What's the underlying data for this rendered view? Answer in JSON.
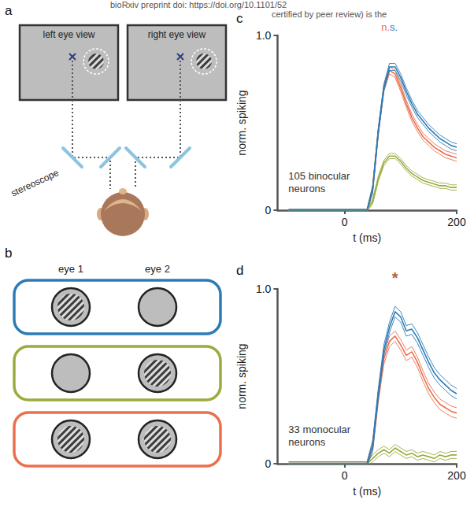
{
  "header": [
    "bioRxiv preprint doi: https://doi.org/10.1101/52",
    "certified by peer review) is the"
  ],
  "panel_letters": [
    "a",
    "b",
    "c",
    "d"
  ],
  "panel_a": {
    "left_view": "left eye view",
    "right_view": "right eye view",
    "device": "stereoscope"
  },
  "panel_b": {
    "columns": [
      "eye 1",
      "eye 2"
    ],
    "rows": [
      {
        "color": "#2b7bb6",
        "grating": [
          true,
          false
        ]
      },
      {
        "color": "#9bab3c",
        "grating": [
          false,
          true
        ]
      },
      {
        "color": "#ec6f4d",
        "grating": [
          true,
          true
        ]
      }
    ]
  },
  "chart_data": [
    {
      "type": "line",
      "x_label": "t (ms)",
      "y_label": "norm. spiking",
      "xlim": [
        -120,
        200
      ],
      "xticks": [
        0,
        200
      ],
      "ylim": [
        0,
        1
      ],
      "yticks": [
        0,
        {
          "value": 1,
          "label": "1.0"
        }
      ],
      "grid": false,
      "annotations": [
        {
          "text": [
            "105 binocular neurons"
          ],
          "colors": [
            "#333333"
          ]
        },
        {
          "text": [
            "n.",
            "s."
          ],
          "colors": [
            "#ec6f4d",
            "#2b7bb6"
          ]
        }
      ],
      "x": [
        -100,
        -90,
        -80,
        -70,
        -60,
        -50,
        -40,
        -30,
        -20,
        -10,
        0,
        10,
        20,
        30,
        40,
        50,
        60,
        70,
        80,
        90,
        100,
        110,
        120,
        130,
        140,
        150,
        160,
        170,
        180,
        190,
        200
      ],
      "series": [
        {
          "color": "#2b7bb6",
          "values": [
            0,
            0,
            0,
            0,
            0,
            0,
            0,
            0,
            0,
            0,
            0,
            0,
            0,
            0,
            0,
            0.12,
            0.45,
            0.7,
            0.82,
            0.82,
            0.76,
            0.68,
            0.61,
            0.55,
            0.51,
            0.47,
            0.44,
            0.41,
            0.39,
            0.37,
            0.36
          ],
          "sem": [
            0.005,
            0.005,
            0.005,
            0.005,
            0.005,
            0.005,
            0.005,
            0.005,
            0.005,
            0.005,
            0.005,
            0.005,
            0.005,
            0.005,
            0.005,
            0.02,
            0.02,
            0.02,
            0.02,
            0.02,
            0.02,
            0.02,
            0.02,
            0.02,
            0.02,
            0.02,
            0.02,
            0.02,
            0.02,
            0.02,
            0.02
          ]
        },
        {
          "color": "#9bab3c",
          "values": [
            0,
            0,
            0,
            0,
            0,
            0,
            0,
            0,
            0,
            0,
            0,
            0,
            0,
            0,
            0,
            0.05,
            0.18,
            0.27,
            0.31,
            0.31,
            0.28,
            0.24,
            0.21,
            0.19,
            0.17,
            0.16,
            0.15,
            0.14,
            0.14,
            0.13,
            0.13
          ],
          "sem": [
            0.005,
            0.005,
            0.005,
            0.005,
            0.005,
            0.005,
            0.005,
            0.005,
            0.005,
            0.005,
            0.005,
            0.005,
            0.005,
            0.005,
            0.005,
            0.015,
            0.015,
            0.015,
            0.015,
            0.015,
            0.015,
            0.015,
            0.015,
            0.015,
            0.015,
            0.015,
            0.015,
            0.015,
            0.015,
            0.015,
            0.015
          ]
        },
        {
          "color": "#ec6f4d",
          "values": [
            0,
            0,
            0,
            0,
            0,
            0,
            0,
            0,
            0,
            0,
            0,
            0,
            0,
            0,
            0,
            0.12,
            0.45,
            0.7,
            0.8,
            0.78,
            0.7,
            0.61,
            0.53,
            0.47,
            0.42,
            0.39,
            0.36,
            0.34,
            0.32,
            0.31,
            0.3
          ],
          "sem": [
            0.005,
            0.005,
            0.005,
            0.005,
            0.005,
            0.005,
            0.005,
            0.005,
            0.005,
            0.005,
            0.005,
            0.005,
            0.005,
            0.005,
            0.005,
            0.02,
            0.02,
            0.02,
            0.02,
            0.02,
            0.02,
            0.02,
            0.02,
            0.02,
            0.02,
            0.02,
            0.02,
            0.02,
            0.02,
            0.02,
            0.02
          ]
        }
      ]
    },
    {
      "type": "line",
      "x_label": "t (ms)",
      "y_label": "norm. spiking",
      "xlim": [
        -120,
        200
      ],
      "xticks": [
        0,
        200
      ],
      "ylim": [
        0,
        1
      ],
      "yticks": [
        0,
        {
          "value": 1,
          "label": "1.0"
        }
      ],
      "grid": false,
      "annotations": [
        {
          "text": [
            "33 monocular neurons"
          ],
          "colors": [
            "#333333"
          ]
        },
        {
          "text": [
            "*"
          ],
          "colors": [
            "#b5603b"
          ]
        }
      ],
      "x": [
        -100,
        -90,
        -80,
        -70,
        -60,
        -50,
        -40,
        -30,
        -20,
        -10,
        0,
        10,
        20,
        30,
        40,
        50,
        60,
        70,
        80,
        90,
        100,
        110,
        120,
        130,
        140,
        150,
        160,
        170,
        180,
        190,
        200
      ],
      "series": [
        {
          "color": "#2b7bb6",
          "values": [
            0,
            0,
            0,
            0,
            0,
            0,
            0,
            0,
            0,
            0,
            0,
            0,
            0,
            0,
            0,
            0.1,
            0.4,
            0.65,
            0.78,
            0.87,
            0.84,
            0.76,
            0.77,
            0.72,
            0.65,
            0.58,
            0.52,
            0.48,
            0.45,
            0.42,
            0.4
          ],
          "sem": [
            0.01,
            0.01,
            0.01,
            0.01,
            0.01,
            0.01,
            0.01,
            0.01,
            0.01,
            0.01,
            0.01,
            0.01,
            0.01,
            0.01,
            0.01,
            0.03,
            0.03,
            0.03,
            0.03,
            0.03,
            0.03,
            0.03,
            0.03,
            0.03,
            0.03,
            0.03,
            0.03,
            0.03,
            0.03,
            0.03,
            0.03
          ]
        },
        {
          "color": "#9bab3c",
          "values": [
            0,
            0,
            0,
            0,
            0,
            0,
            0,
            0,
            0,
            0,
            0,
            0,
            0,
            0,
            0,
            0.03,
            0.06,
            0.08,
            0.06,
            0.09,
            0.07,
            0.05,
            0.06,
            0.04,
            0.05,
            0.04,
            0.03,
            0.05,
            0.04,
            0.05,
            0.05
          ],
          "sem": [
            0.01,
            0.01,
            0.01,
            0.01,
            0.01,
            0.01,
            0.01,
            0.01,
            0.01,
            0.01,
            0.01,
            0.01,
            0.01,
            0.01,
            0.01,
            0.02,
            0.02,
            0.02,
            0.02,
            0.02,
            0.02,
            0.02,
            0.02,
            0.02,
            0.02,
            0.02,
            0.02,
            0.02,
            0.02,
            0.02,
            0.02
          ]
        },
        {
          "color": "#ec6f4d",
          "values": [
            0,
            0,
            0,
            0,
            0,
            0,
            0,
            0,
            0,
            0,
            0,
            0,
            0,
            0,
            0,
            0.1,
            0.38,
            0.6,
            0.7,
            0.73,
            0.68,
            0.62,
            0.64,
            0.58,
            0.5,
            0.43,
            0.38,
            0.34,
            0.32,
            0.3,
            0.29
          ],
          "sem": [
            0.01,
            0.01,
            0.01,
            0.01,
            0.01,
            0.01,
            0.01,
            0.01,
            0.01,
            0.01,
            0.01,
            0.01,
            0.01,
            0.01,
            0.01,
            0.03,
            0.03,
            0.03,
            0.03,
            0.03,
            0.03,
            0.03,
            0.03,
            0.03,
            0.03,
            0.03,
            0.03,
            0.03,
            0.03,
            0.03,
            0.03
          ]
        }
      ]
    }
  ]
}
